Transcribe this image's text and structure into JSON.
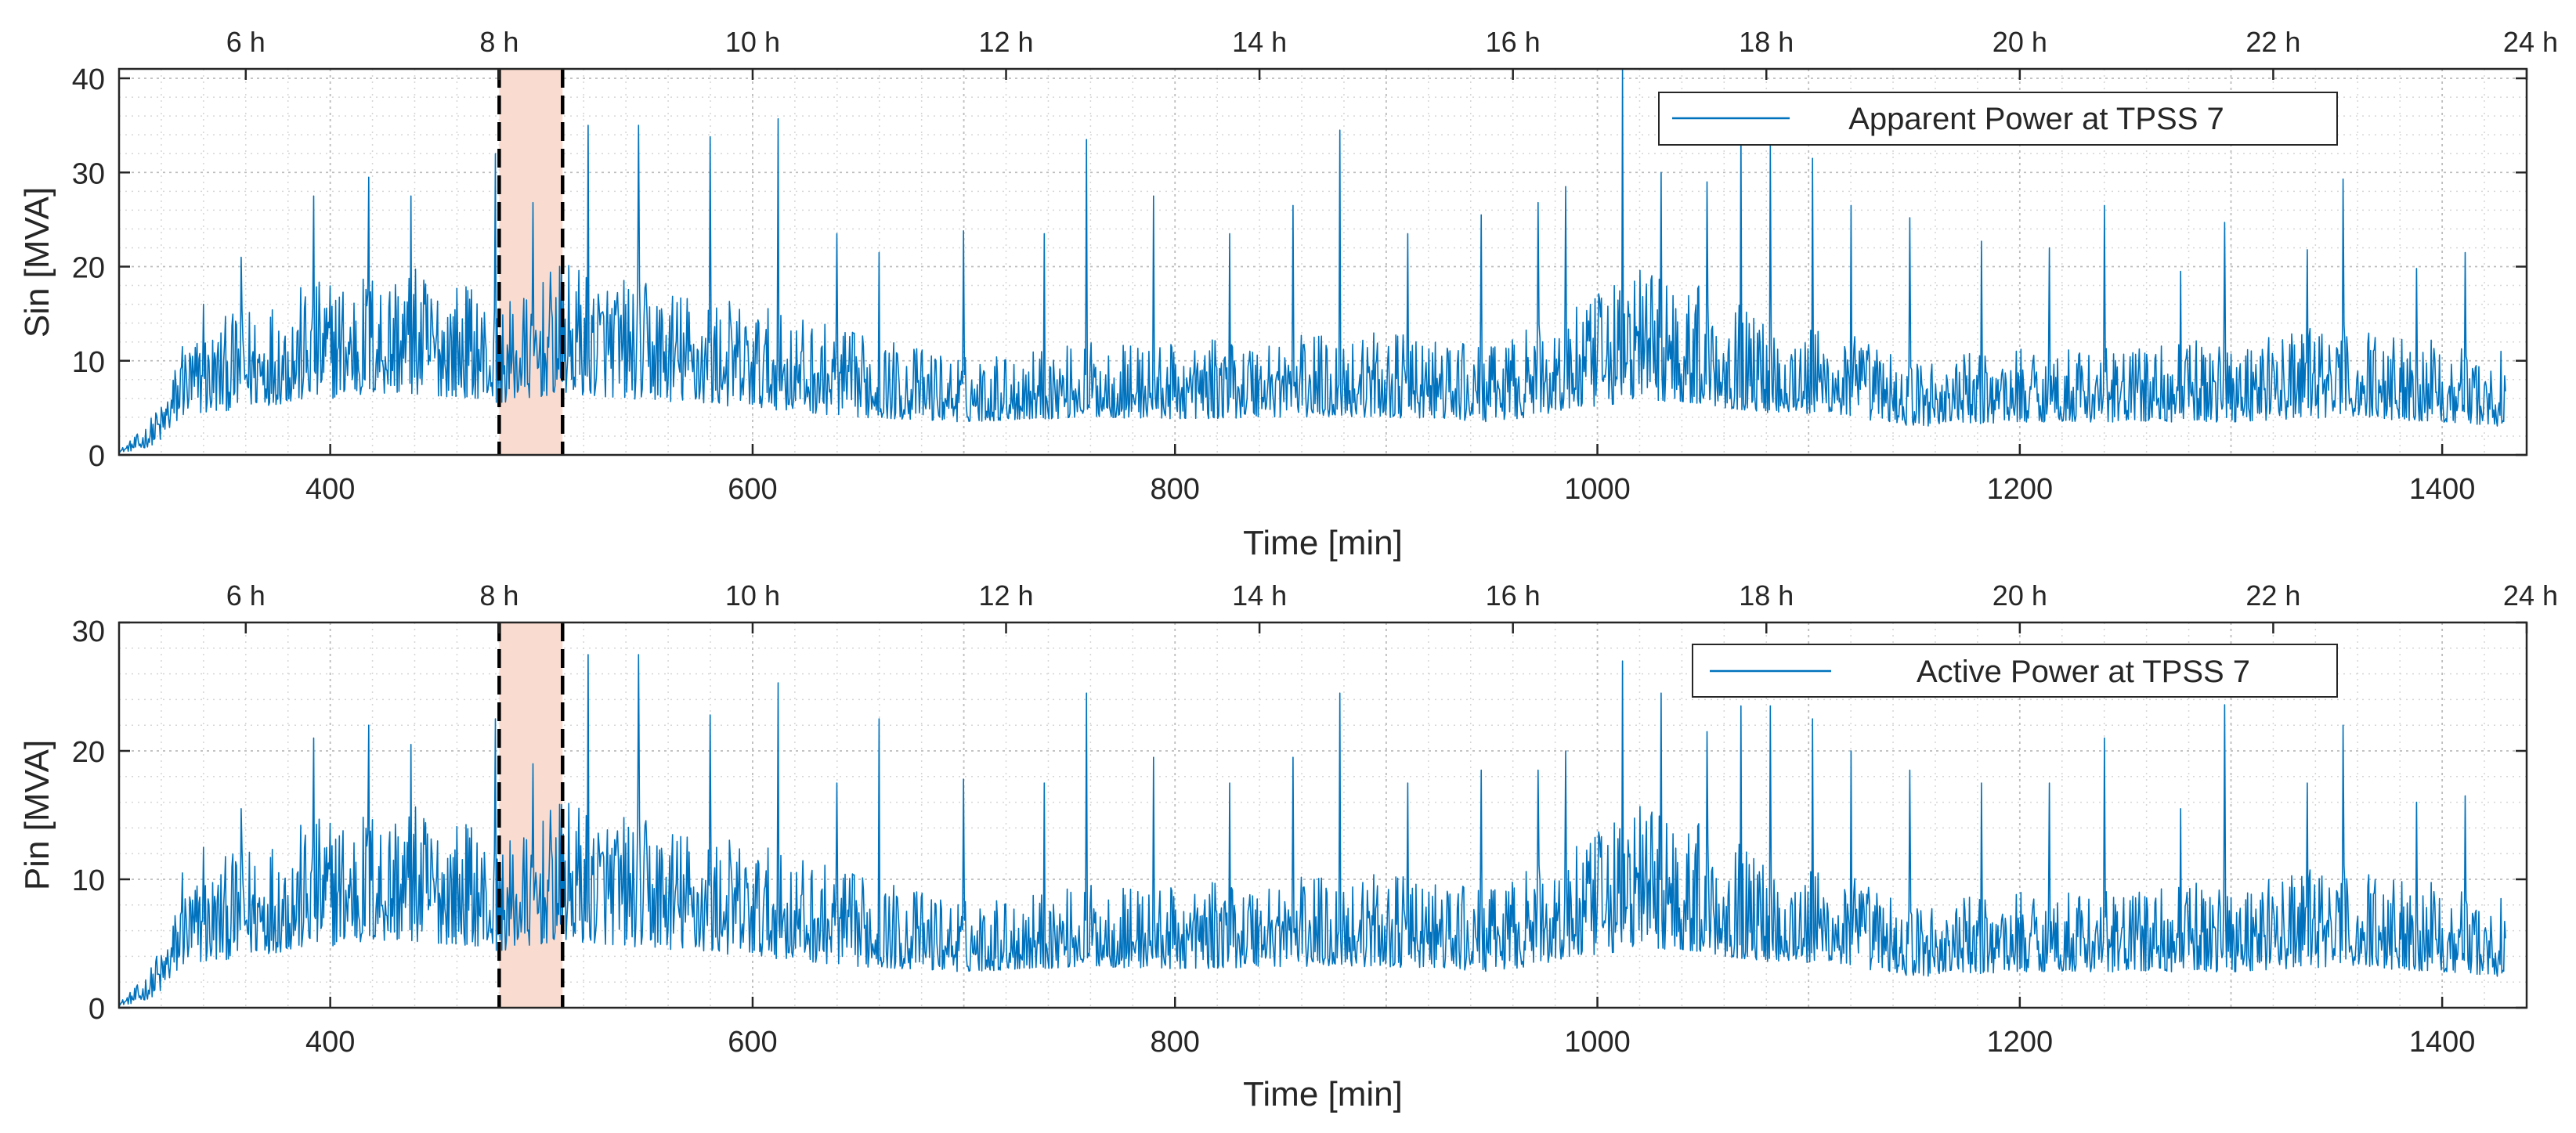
{
  "chart_data": [
    {
      "type": "line",
      "title": "",
      "xlabel": "Time [min]",
      "ylabel": "Sin [MVA]",
      "xlim": [
        300,
        1440
      ],
      "ylim": [
        0,
        41
      ],
      "xticks": [
        400,
        600,
        800,
        1000,
        1200,
        1400
      ],
      "xtick_labels": [
        "400",
        "600",
        "800",
        "1000",
        "1200",
        "1400"
      ],
      "yticks": [
        0,
        10,
        20,
        30,
        40
      ],
      "ytick_labels": [
        "0",
        "10",
        "20",
        "30",
        "40"
      ],
      "top_axis": {
        "ticks": [
          360,
          480,
          600,
          720,
          840,
          960,
          1080,
          1200,
          1320,
          1440
        ],
        "labels": [
          "6 h",
          "8 h",
          "10 h",
          "12 h",
          "14 h",
          "16 h",
          "18 h",
          "20 h",
          "22 h",
          "24 h"
        ]
      },
      "grid": true,
      "legend": {
        "position": "top-right",
        "entries": [
          "Apparent Power at TPSS 7"
        ]
      },
      "highlight": {
        "x_start": 480,
        "x_end": 510,
        "color": "#f9dccf"
      },
      "series": [
        {
          "name": "Apparent Power at TPSS 7",
          "color": "#0072bd",
          "profile": {
            "x": [
              300,
              310,
              320,
              330,
              360,
              400,
              430,
              470,
              480,
              510,
              540,
              600,
              650,
              700,
              760,
              800,
              850,
              900,
              950,
              1000,
              1020,
              1060,
              1080,
              1120,
              1150,
              1200,
              1250,
              1300,
              1350,
              1400,
              1430
            ],
            "baseline": [
              0.3,
              0.5,
              1.5,
              4,
              5,
              6,
              6.5,
              6,
              5.5,
              6.5,
              6,
              5,
              4,
              3.5,
              4,
              3.8,
              4,
              4,
              3.5,
              5,
              6,
              5,
              4.5,
              4,
              3,
              3.5,
              3.5,
              3.5,
              4,
              3.5,
              3
            ],
            "spread": [
              0.2,
              2,
              4,
              8,
              11,
              13,
              14,
              12,
              10,
              14,
              13,
              11,
              9,
              7,
              8,
              8,
              9,
              9,
              8,
              12,
              15,
              12,
              10,
              9,
              7,
              8,
              8,
              9,
              10,
              9,
              6
            ]
          },
          "peaks": [
            {
              "x": 318,
              "y": 4.2
            },
            {
              "x": 330,
              "y": 11.5
            },
            {
              "x": 340,
              "y": 16
            },
            {
              "x": 358,
              "y": 21
            },
            {
              "x": 392,
              "y": 27.5
            },
            {
              "x": 418,
              "y": 29.5
            },
            {
              "x": 438,
              "y": 27.5
            },
            {
              "x": 478,
              "y": 32
            },
            {
              "x": 496,
              "y": 26.8
            },
            {
              "x": 522,
              "y": 35
            },
            {
              "x": 546,
              "y": 35
            },
            {
              "x": 580,
              "y": 33.8
            },
            {
              "x": 612,
              "y": 35.7
            },
            {
              "x": 640,
              "y": 23.5
            },
            {
              "x": 660,
              "y": 21.5
            },
            {
              "x": 700,
              "y": 23.8
            },
            {
              "x": 738,
              "y": 23.5
            },
            {
              "x": 758,
              "y": 33.5
            },
            {
              "x": 790,
              "y": 27.5
            },
            {
              "x": 826,
              "y": 23.5
            },
            {
              "x": 856,
              "y": 26.5
            },
            {
              "x": 878,
              "y": 34.5
            },
            {
              "x": 910,
              "y": 23.5
            },
            {
              "x": 945,
              "y": 25.5
            },
            {
              "x": 972,
              "y": 26.8
            },
            {
              "x": 985,
              "y": 28.5
            },
            {
              "x": 1012,
              "y": 41
            },
            {
              "x": 1030,
              "y": 30
            },
            {
              "x": 1052,
              "y": 29
            },
            {
              "x": 1068,
              "y": 35
            },
            {
              "x": 1082,
              "y": 33
            },
            {
              "x": 1102,
              "y": 31.5
            },
            {
              "x": 1120,
              "y": 26.5
            },
            {
              "x": 1148,
              "y": 25.2
            },
            {
              "x": 1182,
              "y": 22.7
            },
            {
              "x": 1214,
              "y": 22
            },
            {
              "x": 1240,
              "y": 26.5
            },
            {
              "x": 1276,
              "y": 19.5
            },
            {
              "x": 1297,
              "y": 24.7
            },
            {
              "x": 1336,
              "y": 21.8
            },
            {
              "x": 1353,
              "y": 29.3
            },
            {
              "x": 1388,
              "y": 19.8
            },
            {
              "x": 1411,
              "y": 21.5
            },
            {
              "x": 1428,
              "y": 11
            }
          ]
        }
      ]
    },
    {
      "type": "line",
      "title": "",
      "xlabel": "Time [min]",
      "ylabel": "Pin [MVA]",
      "xlim": [
        300,
        1440
      ],
      "ylim": [
        0,
        30
      ],
      "xticks": [
        400,
        600,
        800,
        1000,
        1200,
        1400
      ],
      "xtick_labels": [
        "400",
        "600",
        "800",
        "1000",
        "1200",
        "1400"
      ],
      "yticks": [
        0,
        10,
        20,
        30
      ],
      "ytick_labels": [
        "0",
        "10",
        "20",
        "30"
      ],
      "top_axis": {
        "ticks": [
          360,
          480,
          600,
          720,
          840,
          960,
          1080,
          1200,
          1320,
          1440
        ],
        "labels": [
          "6 h",
          "8 h",
          "10 h",
          "12 h",
          "14 h",
          "16 h",
          "18 h",
          "20 h",
          "22 h",
          "24 h"
        ]
      },
      "grid": true,
      "legend": {
        "position": "top-right",
        "entries": [
          "Active Power at TPSS 7"
        ]
      },
      "highlight": {
        "x_start": 480,
        "x_end": 510,
        "color": "#f9dccf"
      },
      "series": [
        {
          "name": "Active Power at TPSS 7",
          "color": "#0072bd",
          "profile": {
            "x": [
              300,
              310,
              320,
              330,
              360,
              400,
              430,
              470,
              480,
              510,
              540,
              600,
              650,
              700,
              760,
              800,
              850,
              900,
              950,
              1000,
              1020,
              1060,
              1080,
              1120,
              1150,
              1200,
              1250,
              1300,
              1350,
              1400,
              1430
            ],
            "baseline": [
              0.2,
              0.4,
              1.2,
              3.2,
              4,
              4.8,
              5.2,
              4.8,
              4.4,
              5.2,
              4.8,
              4,
              3.2,
              2.8,
              3.2,
              3,
              3.2,
              3.2,
              2.8,
              4,
              4.8,
              4,
              3.6,
              3.2,
              2.4,
              2.8,
              2.8,
              2.8,
              3.2,
              2.8,
              2.4
            ],
            "spread": [
              0.2,
              1.6,
              3.2,
              6.4,
              8.8,
              10.4,
              11,
              9.6,
              8,
              11,
              10.4,
              8.8,
              7.2,
              5.6,
              6.4,
              6.4,
              7.2,
              7.2,
              6.4,
              9.6,
              12,
              9.6,
              8,
              7.2,
              5.6,
              6.4,
              6.4,
              7.2,
              8,
              7.2,
              4.8
            ]
          },
          "peaks": [
            {
              "x": 318,
              "y": 4
            },
            {
              "x": 330,
              "y": 10.5
            },
            {
              "x": 340,
              "y": 12.5
            },
            {
              "x": 358,
              "y": 15.5
            },
            {
              "x": 392,
              "y": 21
            },
            {
              "x": 418,
              "y": 22
            },
            {
              "x": 438,
              "y": 20.5
            },
            {
              "x": 478,
              "y": 22.5
            },
            {
              "x": 496,
              "y": 19
            },
            {
              "x": 522,
              "y": 27.5
            },
            {
              "x": 546,
              "y": 27.5
            },
            {
              "x": 580,
              "y": 22.8
            },
            {
              "x": 612,
              "y": 25.3
            },
            {
              "x": 640,
              "y": 17.5
            },
            {
              "x": 660,
              "y": 22.5
            },
            {
              "x": 700,
              "y": 17.8
            },
            {
              "x": 738,
              "y": 17.5
            },
            {
              "x": 758,
              "y": 24.5
            },
            {
              "x": 790,
              "y": 19.5
            },
            {
              "x": 826,
              "y": 17.5
            },
            {
              "x": 856,
              "y": 19.5
            },
            {
              "x": 878,
              "y": 24.5
            },
            {
              "x": 910,
              "y": 17.5
            },
            {
              "x": 945,
              "y": 18.5
            },
            {
              "x": 972,
              "y": 18.5
            },
            {
              "x": 985,
              "y": 20
            },
            {
              "x": 1012,
              "y": 27
            },
            {
              "x": 1030,
              "y": 24.5
            },
            {
              "x": 1052,
              "y": 21.5
            },
            {
              "x": 1068,
              "y": 23.5
            },
            {
              "x": 1082,
              "y": 23.5
            },
            {
              "x": 1102,
              "y": 22.5
            },
            {
              "x": 1120,
              "y": 20
            },
            {
              "x": 1148,
              "y": 18.5
            },
            {
              "x": 1182,
              "y": 17.5
            },
            {
              "x": 1214,
              "y": 17.5
            },
            {
              "x": 1240,
              "y": 21
            },
            {
              "x": 1276,
              "y": 15.5
            },
            {
              "x": 1297,
              "y": 23.6
            },
            {
              "x": 1336,
              "y": 17.5
            },
            {
              "x": 1353,
              "y": 22
            },
            {
              "x": 1388,
              "y": 16
            },
            {
              "x": 1411,
              "y": 16.5
            },
            {
              "x": 1428,
              "y": 8.5
            }
          ]
        }
      ]
    }
  ]
}
